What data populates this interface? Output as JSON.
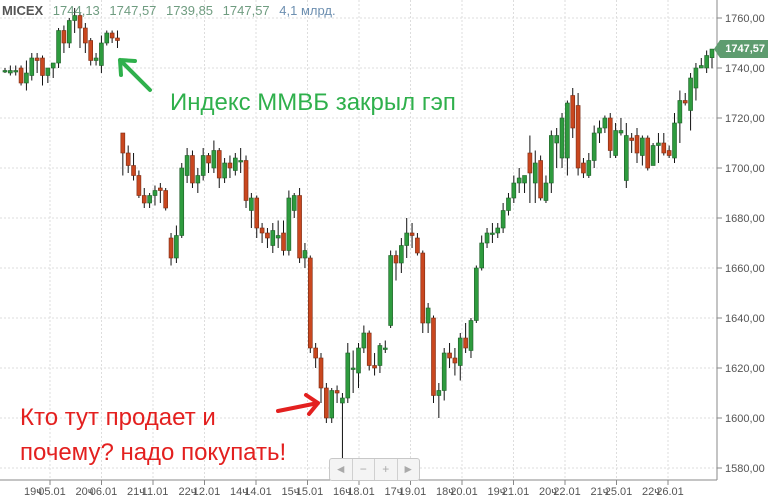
{
  "header": {
    "symbol": "MICEX",
    "open": "1744,13",
    "high": "1747,57",
    "low": "1739,85",
    "close": "1747,57",
    "volume": "4,1 млрд."
  },
  "last_price_label": "1747,57",
  "annotations": {
    "green_text": "Индекс ММВБ закрыл гэп",
    "red_text_line1": "Кто тут продает и",
    "red_text_line2": "почему? надо покупать!",
    "green_color": "#2fb04c",
    "red_color": "#e3201f"
  },
  "nav": {
    "left": "◄",
    "zoom_out": "−",
    "zoom_in": "+",
    "right": "►"
  },
  "colors": {
    "up": "#2e9b3e",
    "down": "#c9471f",
    "wick": "#111111",
    "grid": "#dddddd",
    "price_tag": "#5e9c6f"
  },
  "chart_data": {
    "type": "candlestick",
    "ylim": [
      1575,
      1765
    ],
    "grid": true,
    "y_ticks": [
      "1580,00",
      "1600,00",
      "1620,00",
      "1640,00",
      "1660,00",
      "1680,00",
      "1700,00",
      "1720,00",
      "1740,00",
      "1760,00"
    ],
    "y_tick_values": [
      1580,
      1600,
      1620,
      1640,
      1660,
      1680,
      1700,
      1720,
      1740,
      1760
    ],
    "x_labels": [
      {
        "hour": "19ч",
        "day": "05.01"
      },
      {
        "hour": "20ч",
        "day": "06.01"
      },
      {
        "hour": "21ч",
        "day": "11.01"
      },
      {
        "hour": "22ч",
        "day": "12.01"
      },
      {
        "hour": "14ч",
        "day": "14.01"
      },
      {
        "hour": "15ч",
        "day": "15.01"
      },
      {
        "hour": "16ч",
        "day": "18.01"
      },
      {
        "hour": "17ч",
        "day": "19.01"
      },
      {
        "hour": "18ч",
        "day": "20.01"
      },
      {
        "hour": "19ч",
        "day": "21.01"
      },
      {
        "hour": "20ч",
        "day": "22.01"
      },
      {
        "hour": "21ч",
        "day": "25.01"
      },
      {
        "hour": "22ч",
        "day": "26.01"
      }
    ],
    "ohlc": [
      [
        1739,
        1740,
        1738,
        1739
      ],
      [
        1738,
        1741,
        1737,
        1739
      ],
      [
        1739,
        1741,
        1737,
        1739
      ],
      [
        1740,
        1741,
        1733,
        1734
      ],
      [
        1734,
        1743,
        1731,
        1738
      ],
      [
        1737,
        1746,
        1735,
        1744
      ],
      [
        1744,
        1746,
        1738,
        1743
      ],
      [
        1744,
        1745,
        1733,
        1737
      ],
      [
        1737,
        1740,
        1734,
        1740
      ],
      [
        1740,
        1742,
        1736,
        1742
      ],
      [
        1742,
        1756,
        1740,
        1755
      ],
      [
        1755,
        1757,
        1746,
        1750
      ],
      [
        1750,
        1760,
        1748,
        1759
      ],
      [
        1759,
        1764,
        1754,
        1761
      ],
      [
        1761,
        1762,
        1748,
        1756
      ],
      [
        1756,
        1758,
        1746,
        1750
      ],
      [
        1751,
        1752,
        1741,
        1743
      ],
      [
        1743,
        1746,
        1741,
        1744
      ],
      [
        1741,
        1753,
        1738,
        1750
      ],
      [
        1750,
        1755,
        1749,
        1754
      ],
      [
        1754,
        1755,
        1750,
        1752
      ],
      [
        1752,
        1755,
        1748,
        1751
      ],
      [
        1714,
        1714,
        1697,
        1706
      ],
      [
        1706,
        1709,
        1698,
        1701
      ],
      [
        1701,
        1706,
        1695,
        1697
      ],
      [
        1697,
        1699,
        1688,
        1689
      ],
      [
        1689,
        1692,
        1684,
        1686
      ],
      [
        1686,
        1690,
        1684,
        1689
      ],
      [
        1689,
        1693,
        1685,
        1691
      ],
      [
        1692,
        1694,
        1686,
        1691
      ],
      [
        1691,
        1692,
        1683,
        1684
      ],
      [
        1672,
        1674,
        1661,
        1664
      ],
      [
        1664,
        1677,
        1662,
        1673
      ],
      [
        1673,
        1702,
        1672,
        1700
      ],
      [
        1697,
        1708,
        1694,
        1705
      ],
      [
        1705,
        1707,
        1692,
        1694
      ],
      [
        1694,
        1700,
        1690,
        1697
      ],
      [
        1697,
        1708,
        1695,
        1705
      ],
      [
        1705,
        1706,
        1698,
        1702
      ],
      [
        1700,
        1711,
        1698,
        1707
      ],
      [
        1707,
        1708,
        1692,
        1696
      ],
      [
        1696,
        1704,
        1694,
        1702
      ],
      [
        1702,
        1705,
        1696,
        1700
      ],
      [
        1699,
        1706,
        1697,
        1704
      ],
      [
        1703,
        1708,
        1698,
        1703
      ],
      [
        1703,
        1705,
        1684,
        1687
      ],
      [
        1683,
        1690,
        1676,
        1688
      ],
      [
        1688,
        1689,
        1672,
        1676
      ],
      [
        1676,
        1678,
        1670,
        1674
      ],
      [
        1674,
        1676,
        1668,
        1672
      ],
      [
        1669,
        1678,
        1666,
        1675
      ],
      [
        1672,
        1679,
        1668,
        1673
      ],
      [
        1674,
        1679,
        1665,
        1667
      ],
      [
        1667,
        1691,
        1665,
        1688
      ],
      [
        1683,
        1690,
        1680,
        1689
      ],
      [
        1689,
        1692,
        1662,
        1664
      ],
      [
        1664,
        1670,
        1660,
        1667
      ],
      [
        1664,
        1665,
        1626,
        1628
      ],
      [
        1628,
        1630,
        1620,
        1624
      ],
      [
        1624,
        1626,
        1606,
        1612
      ],
      [
        1612,
        1614,
        1598,
        1600
      ],
      [
        1600,
        1612,
        1598,
        1611
      ],
      [
        1611,
        1613,
        1606,
        1610
      ],
      [
        1606,
        1610,
        1583,
        1608
      ],
      [
        1608,
        1630,
        1606,
        1626
      ],
      [
        1620,
        1627,
        1610,
        1620
      ],
      [
        1618,
        1630,
        1612,
        1628
      ],
      [
        1628,
        1637,
        1626,
        1634
      ],
      [
        1634,
        1635,
        1619,
        1621
      ],
      [
        1621,
        1626,
        1617,
        1620
      ],
      [
        1621,
        1630,
        1618,
        1629
      ],
      [
        1628,
        1631,
        1626,
        1628
      ],
      [
        1637,
        1667,
        1636,
        1665
      ],
      [
        1665,
        1667,
        1655,
        1662
      ],
      [
        1662,
        1672,
        1658,
        1669
      ],
      [
        1669,
        1680,
        1664,
        1674
      ],
      [
        1674,
        1678,
        1668,
        1673
      ],
      [
        1672,
        1674,
        1665,
        1666
      ],
      [
        1666,
        1667,
        1634,
        1638
      ],
      [
        1638,
        1646,
        1634,
        1644
      ],
      [
        1640,
        1641,
        1606,
        1609
      ],
      [
        1609,
        1614,
        1600,
        1611
      ],
      [
        1611,
        1628,
        1607,
        1626
      ],
      [
        1626,
        1630,
        1620,
        1624
      ],
      [
        1624,
        1628,
        1617,
        1622
      ],
      [
        1621,
        1634,
        1615,
        1632
      ],
      [
        1632,
        1638,
        1626,
        1628
      ],
      [
        1627,
        1640,
        1624,
        1639
      ],
      [
        1639,
        1661,
        1638,
        1660
      ],
      [
        1660,
        1673,
        1659,
        1670
      ],
      [
        1670,
        1676,
        1668,
        1674
      ],
      [
        1674,
        1678,
        1670,
        1674
      ],
      [
        1674,
        1678,
        1672,
        1676
      ],
      [
        1676,
        1686,
        1674,
        1683
      ],
      [
        1683,
        1690,
        1681,
        1688
      ],
      [
        1688,
        1697,
        1686,
        1694
      ],
      [
        1694,
        1700,
        1690,
        1696
      ],
      [
        1694,
        1697,
        1690,
        1697
      ],
      [
        1706,
        1713,
        1686,
        1698
      ],
      [
        1694,
        1707,
        1686,
        1702
      ],
      [
        1703,
        1705,
        1687,
        1688
      ],
      [
        1687,
        1697,
        1686,
        1694
      ],
      [
        1694,
        1715,
        1690,
        1713
      ],
      [
        1710,
        1716,
        1700,
        1713
      ],
      [
        1704,
        1722,
        1700,
        1720
      ],
      [
        1704,
        1727,
        1697,
        1726
      ],
      [
        1729,
        1732,
        1712,
        1716
      ],
      [
        1725,
        1730,
        1697,
        1700
      ],
      [
        1702,
        1704,
        1696,
        1698
      ],
      [
        1697,
        1706,
        1696,
        1703
      ],
      [
        1703,
        1717,
        1700,
        1714
      ],
      [
        1714,
        1719,
        1710,
        1716
      ],
      [
        1716,
        1721,
        1714,
        1720
      ],
      [
        1720,
        1722,
        1704,
        1707
      ],
      [
        1705,
        1718,
        1704,
        1715
      ],
      [
        1714,
        1720,
        1713,
        1715
      ],
      [
        1695,
        1718,
        1692,
        1713
      ],
      [
        1712,
        1714,
        1706,
        1711
      ],
      [
        1713,
        1716,
        1702,
        1706
      ],
      [
        1705,
        1713,
        1701,
        1712
      ],
      [
        1712,
        1713,
        1699,
        1700
      ],
      [
        1701,
        1710,
        1701,
        1709
      ],
      [
        1709,
        1714,
        1702,
        1710
      ],
      [
        1710,
        1714,
        1705,
        1706
      ],
      [
        1707,
        1709,
        1704,
        1705
      ],
      [
        1704,
        1722,
        1702,
        1718
      ],
      [
        1718,
        1731,
        1710,
        1727
      ],
      [
        1727,
        1730,
        1725,
        1726
      ],
      [
        1723,
        1738,
        1715,
        1736
      ],
      [
        1732,
        1742,
        1727,
        1740
      ],
      [
        1740,
        1744,
        1740,
        1741
      ],
      [
        1740,
        1747,
        1738,
        1745
      ],
      [
        1744.13,
        1747.57,
        1739.85,
        1747.57
      ]
    ]
  }
}
